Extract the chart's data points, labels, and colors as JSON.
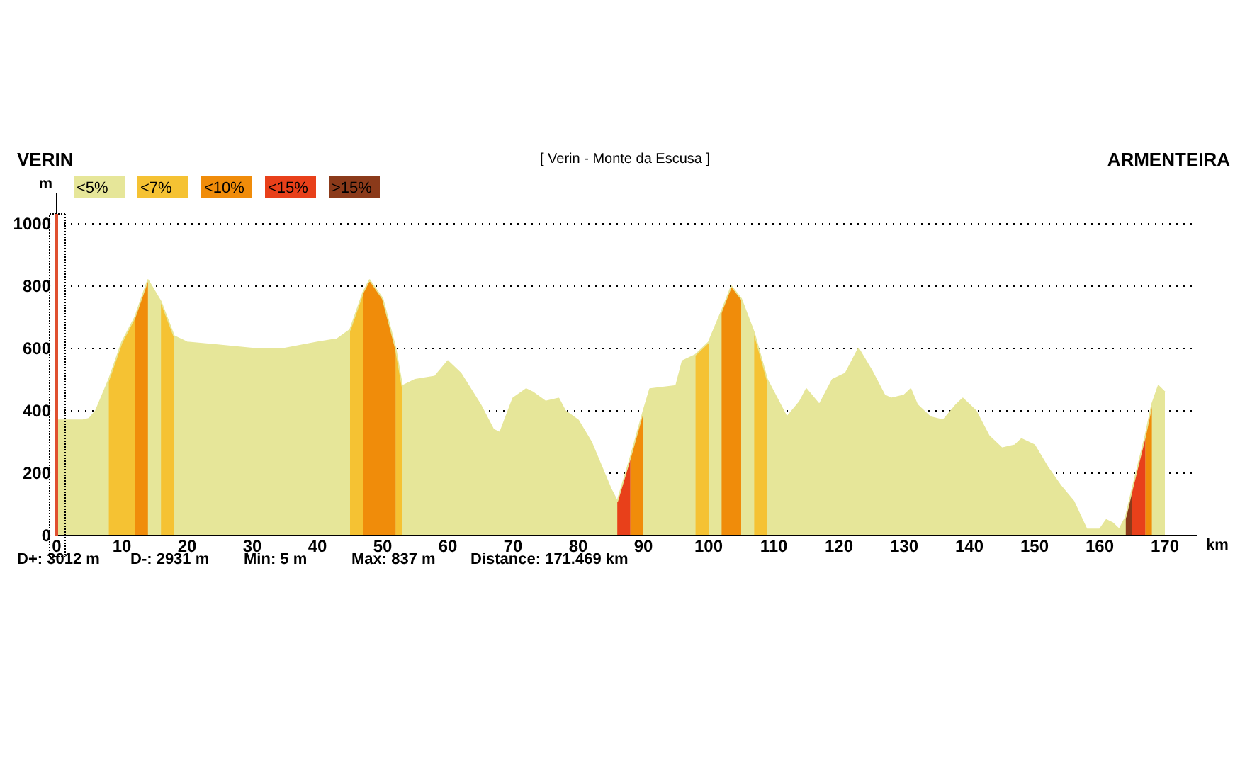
{
  "chart_data": {
    "type": "area",
    "title": "[ Verin - Monte da Escusa ]",
    "xlabel": "km",
    "ylabel": "m",
    "annotations": [
      "VERIN",
      "ARMENTEIRA",
      "D+: 3012 m",
      "D-: 2931 m",
      "Min: 5 m",
      "Max: 837 m",
      "Distance: 171.469 km"
    ],
    "x": [
      0,
      2,
      4,
      5,
      6,
      8,
      10,
      12,
      14,
      16,
      18,
      20,
      25,
      30,
      35,
      40,
      43,
      45,
      47,
      48,
      50,
      52,
      53,
      55,
      58,
      60,
      62,
      65,
      67,
      68,
      70,
      72,
      73,
      75,
      77,
      78,
      80,
      82,
      84,
      85,
      86,
      88,
      90,
      91,
      95,
      96,
      98,
      100,
      102,
      103.5,
      105,
      107,
      109,
      111,
      112,
      114,
      115,
      117,
      119,
      121,
      123,
      125,
      127,
      128,
      130,
      131,
      132,
      134,
      136,
      138,
      139,
      141,
      143,
      145,
      147,
      148,
      150,
      152,
      154,
      156,
      158,
      160,
      161,
      162,
      163,
      164,
      165,
      167,
      168,
      169,
      170
    ],
    "xlim": [
      0,
      175
    ],
    "xticks": [
      0,
      10,
      20,
      30,
      40,
      50,
      60,
      70,
      80,
      90,
      100,
      110,
      120,
      130,
      140,
      150,
      160,
      170
    ],
    "ylim": [
      0,
      1100
    ],
    "yticks": [
      0,
      200,
      400,
      600,
      800,
      1000
    ],
    "grid": "y",
    "legend": "top left",
    "ref_lines": [
      {
        "axis": "x",
        "value": 0,
        "color": "#e05030"
      }
    ],
    "series": [
      {
        "name": "<5%",
        "color": "#e6e699",
        "values": [
          370,
          370,
          370,
          375,
          400,
          500,
          620,
          700,
          820,
          750,
          640,
          620,
          610,
          600,
          600,
          620,
          630,
          660,
          780,
          820,
          760,
          600,
          480,
          500,
          510,
          560,
          520,
          420,
          340,
          330,
          440,
          470,
          460,
          430,
          440,
          400,
          370,
          300,
          200,
          150,
          110,
          250,
          400,
          470,
          480,
          560,
          580,
          620,
          720,
          800,
          760,
          650,
          500,
          420,
          380,
          430,
          470,
          420,
          500,
          520,
          600,
          530,
          450,
          440,
          450,
          470,
          420,
          380,
          370,
          420,
          440,
          400,
          320,
          280,
          290,
          310,
          290,
          220,
          160,
          110,
          20,
          20,
          50,
          40,
          20,
          60,
          150,
          320,
          420,
          480,
          460
        ]
      },
      {
        "name": "<7%",
        "color": "#f5c233",
        "x": [
          8,
          10,
          12,
          13,
          16,
          18,
          19,
          45,
          47,
          48,
          52,
          53,
          54,
          98,
          100,
          101,
          107,
          109
        ],
        "values": [
          500,
          620,
          700,
          null,
          750,
          640,
          null,
          660,
          780,
          null,
          600,
          480,
          null,
          580,
          620,
          null,
          650,
          500
        ]
      },
      {
        "name": "<10%",
        "color": "#f08c0a",
        "x": [
          12,
          14,
          15,
          47,
          48,
          50,
          52,
          53,
          88,
          90,
          91,
          102,
          103.5,
          105,
          106,
          167,
          168
        ],
        "values": [
          700,
          820,
          null,
          780,
          820,
          760,
          600,
          null,
          250,
          400,
          null,
          720,
          800,
          760,
          null,
          320,
          420
        ]
      },
      {
        "name": "<15%",
        "color": "#e8401a",
        "x": [
          86,
          88,
          89,
          165,
          167
        ],
        "values": [
          110,
          250,
          null,
          150,
          320
        ]
      },
      {
        "name": ">15%",
        "color": "#8b3a1a",
        "x": [
          164,
          165
        ],
        "values": [
          60,
          150
        ]
      }
    ]
  }
}
